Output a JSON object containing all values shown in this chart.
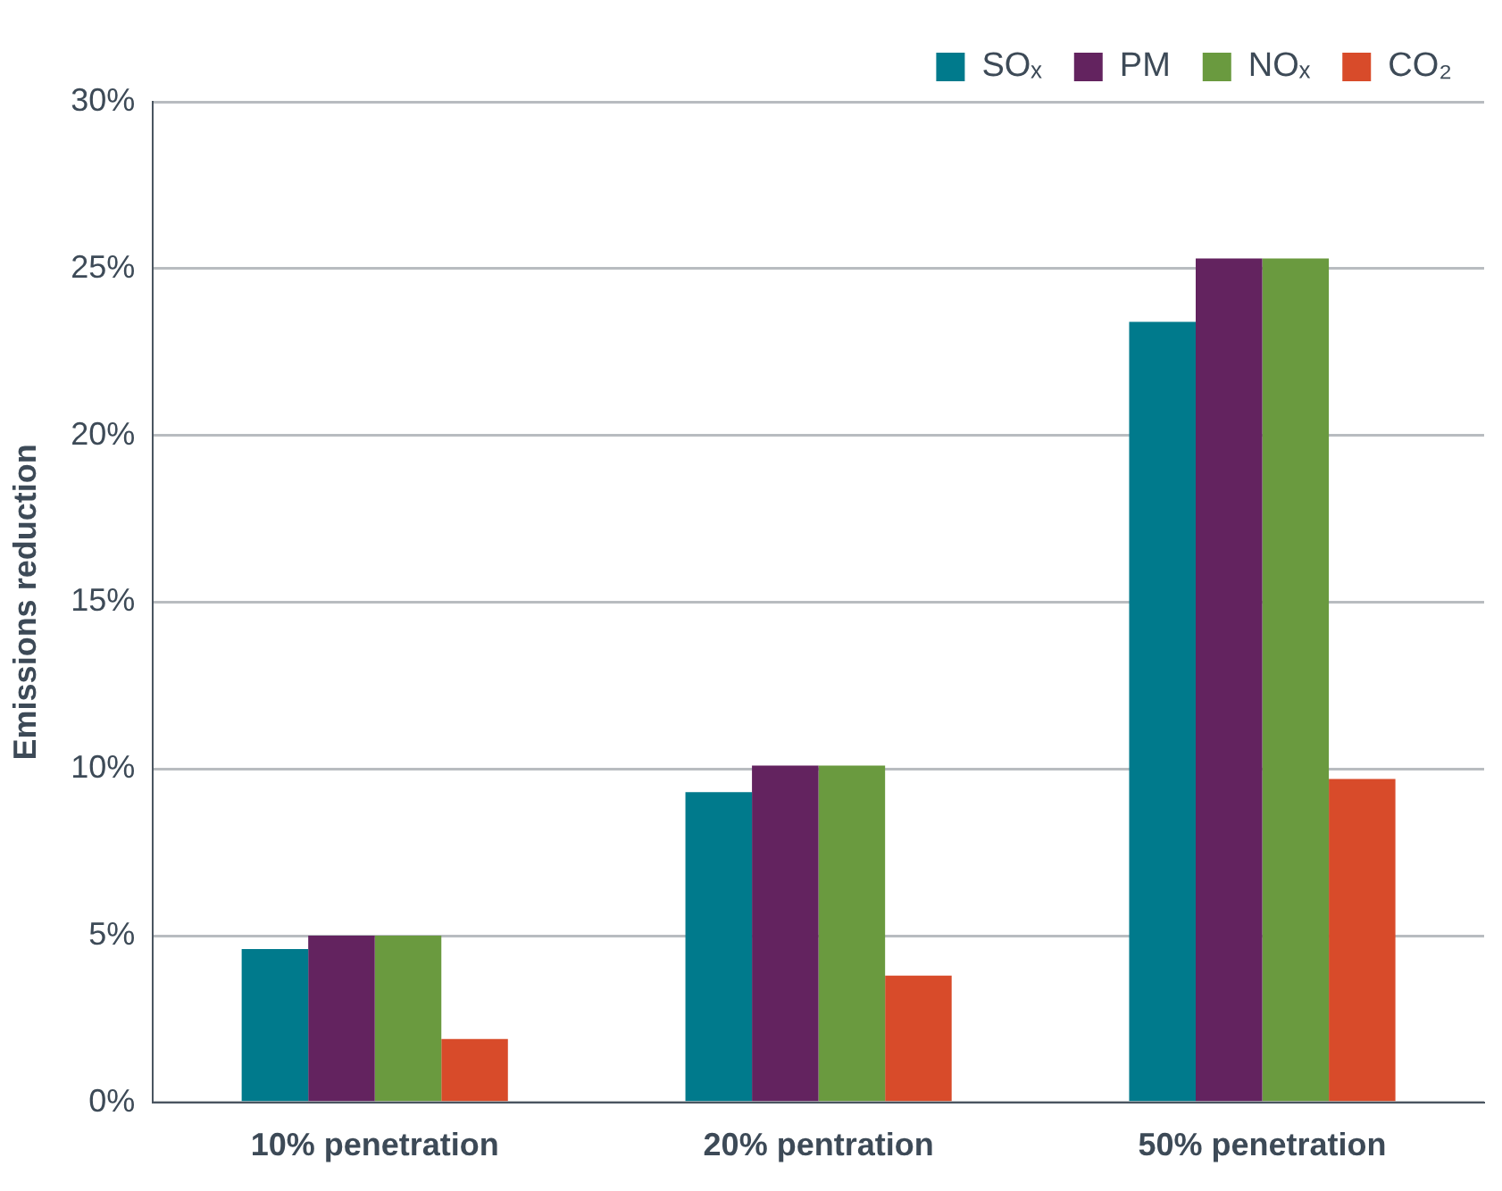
{
  "chart_data": {
    "type": "bar",
    "ylabel": "Emissions reduction",
    "categories": [
      "10% penetration",
      "20% pentration",
      "50% penetration"
    ],
    "series": [
      {
        "name": "SOₓ",
        "color": "#007a8c",
        "values": [
          4.6,
          9.3,
          23.4
        ]
      },
      {
        "name": "PM",
        "color": "#63235f",
        "values": [
          5.0,
          10.1,
          25.3
        ]
      },
      {
        "name": "NOₓ",
        "color": "#6a9a3f",
        "values": [
          5.0,
          10.1,
          25.3
        ]
      },
      {
        "name": "CO₂",
        "color": "#d84b2a",
        "values": [
          1.9,
          3.8,
          9.7
        ]
      }
    ],
    "ylim": [
      0,
      30
    ],
    "yticks": [
      {
        "value": 0,
        "label": "0%"
      },
      {
        "value": 5,
        "label": "5%"
      },
      {
        "value": 10,
        "label": "10%"
      },
      {
        "value": 15,
        "label": "15%"
      },
      {
        "value": 20,
        "label": "20%"
      },
      {
        "value": 25,
        "label": "25%"
      },
      {
        "value": 30,
        "label": "30%"
      }
    ],
    "grid": "y",
    "legend": "top right"
  }
}
